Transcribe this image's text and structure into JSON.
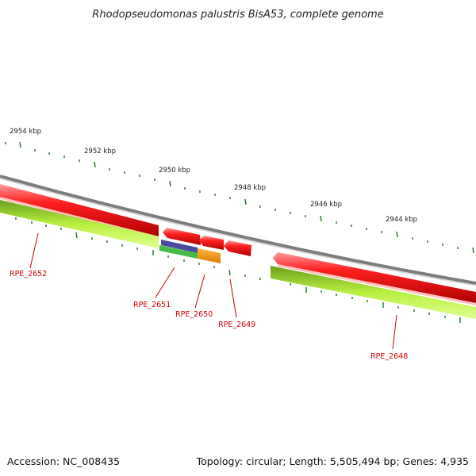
{
  "title": "Rhodopseudomonas palustris BisA53, complete genome",
  "footer": {
    "accession": "Accession: NC_008435",
    "summary": "Topology: circular; Length: 5,505,494 bp; Genes: 4,935"
  },
  "scale_labels": [
    "2954 kbp",
    "2952 kbp",
    "2950 kbp",
    "2948 kbp",
    "2946 kbp",
    "2944 kbp"
  ],
  "gene_labels": [
    "RPE_2652",
    "RPE_2651",
    "RPE_2650",
    "RPE_2649",
    "RPE_2648"
  ],
  "colors": {
    "backbone": "#8a8a8a",
    "gene_red": "#ff0000",
    "gene_green": "#99dd22",
    "gene_blue": "#4a4aa0",
    "gene_orange": "#ff9900",
    "tick": "#1a7a1a",
    "label": "#cc0000"
  }
}
